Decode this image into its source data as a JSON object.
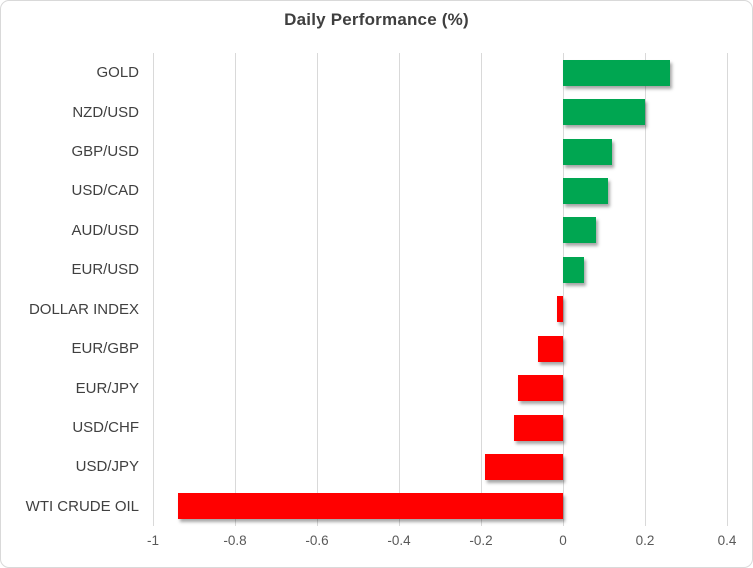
{
  "chart_data": {
    "type": "bar",
    "orientation": "horizontal",
    "title": "Daily Performance (%)",
    "categories": [
      "GOLD",
      "NZD/USD",
      "GBP/USD",
      "USD/CAD",
      "AUD/USD",
      "EUR/USD",
      "DOLLAR INDEX",
      "EUR/GBP",
      "EUR/JPY",
      "USD/CHF",
      "USD/JPY",
      "WTI CRUDE OIL"
    ],
    "values": [
      0.26,
      0.2,
      0.12,
      0.11,
      0.08,
      0.05,
      -0.015,
      -0.06,
      -0.11,
      -0.12,
      -0.19,
      -0.94
    ],
    "xlabel": "",
    "ylabel": "",
    "xlim": [
      -1,
      0.4
    ],
    "xticks": [
      -1,
      -0.8,
      -0.6,
      -0.4,
      -0.2,
      0,
      0.2,
      0.4
    ],
    "xtick_labels": [
      "-1",
      "-0.8",
      "-0.6",
      "-0.4",
      "-0.2",
      "0",
      "0.2",
      "0.4"
    ],
    "grid": true,
    "legend": "none",
    "colors": {
      "positive": "#00a651",
      "negative": "#ff0000",
      "gridline": "#d9d9d9",
      "title": "#3f3f3f",
      "tick_label": "#595959",
      "category_label": "#404040",
      "border": "#d9d9d9",
      "background": "#ffffff"
    }
  }
}
